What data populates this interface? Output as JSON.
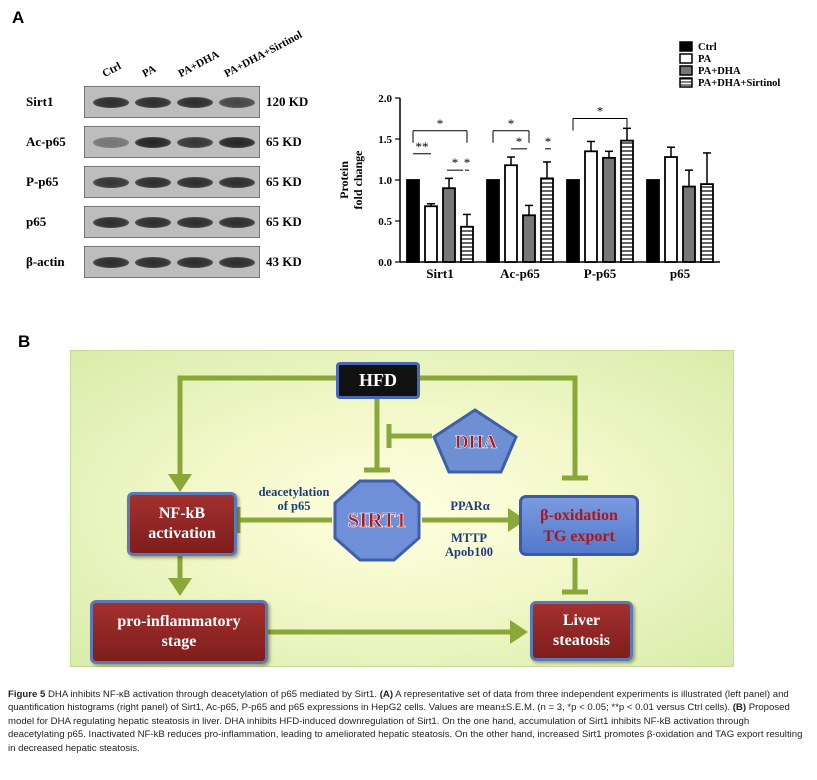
{
  "panel_a": {
    "letter": "A",
    "lanes": [
      "Ctrl",
      "PA",
      "PA+DHA",
      "PA+DHA+Sirtinol"
    ],
    "rows": [
      {
        "label": "Sirt1",
        "kd": "120 KD",
        "bands": [
          0.9,
          0.9,
          0.9,
          0.75
        ]
      },
      {
        "label": "Ac-p65",
        "kd": "65 KD",
        "bands": [
          0.45,
          0.95,
          0.85,
          0.95
        ]
      },
      {
        "label": "P-p65",
        "kd": "65 KD",
        "bands": [
          0.85,
          0.9,
          0.9,
          0.9
        ]
      },
      {
        "label": "p65",
        "kd": "65 KD",
        "bands": [
          0.9,
          0.9,
          0.9,
          0.9
        ]
      },
      {
        "label": "β-actin",
        "kd": "43 KD",
        "bands": [
          0.9,
          0.9,
          0.9,
          0.9
        ]
      }
    ]
  },
  "chart_data": {
    "type": "bar",
    "categories": [
      "Sirt1",
      "Ac-p65",
      "P-p65",
      "p65"
    ],
    "ylabel": "Protein fold change",
    "ylim": [
      0,
      2.0
    ],
    "yticks": [
      "0.0",
      "0.5",
      "1.0",
      "1.5",
      "2.0"
    ],
    "legend_position": "top-right",
    "series": [
      {
        "name": "Ctrl",
        "pattern": "solid-black",
        "values": [
          1.0,
          1.0,
          1.0,
          1.0
        ],
        "errors": [
          0,
          0,
          0,
          0
        ]
      },
      {
        "name": "PA",
        "pattern": "white",
        "values": [
          0.68,
          1.18,
          1.35,
          1.28
        ],
        "errors": [
          0.03,
          0.1,
          0.12,
          0.12
        ]
      },
      {
        "name": "PA+DHA",
        "pattern": "gray",
        "values": [
          0.9,
          0.57,
          1.27,
          0.92
        ],
        "errors": [
          0.12,
          0.12,
          0.08,
          0.2
        ]
      },
      {
        "name": "PA+DHA+Sirtinol",
        "pattern": "striped",
        "values": [
          0.43,
          1.02,
          1.48,
          0.95
        ],
        "errors": [
          0.15,
          0.2,
          0.15,
          0.38
        ]
      }
    ],
    "significance": [
      "*",
      "**",
      "*",
      "*",
      "*",
      "*",
      "*",
      "*"
    ]
  },
  "panel_b": {
    "letter": "B",
    "nodes": {
      "hfd": "HFD",
      "dha": "DHA",
      "sirt1": "SIRT1",
      "nfkb": [
        "NF-kB",
        "activation"
      ],
      "beta_ox": [
        "β-oxidation",
        "TG export"
      ],
      "inflam": [
        "pro-inflammatory",
        "stage"
      ],
      "steatosis": [
        "Liver",
        "steatosis"
      ]
    },
    "labels": {
      "deacetylation": [
        "deacetylation",
        "of p65"
      ],
      "ppar": "PPARα",
      "mttp": [
        "MTTP",
        "Apob100"
      ]
    }
  },
  "caption": {
    "figure": "Figure 5",
    "title": "DHA inhibits NF-κB activation through deacetylation of p65 mediated by Sirt1.",
    "a_label": "(A)",
    "a_text": "A representative set of data from three independent experiments is illustrated (left panel) and quantification histograms (right panel) of Sirt1, Ac-p65, P-p65 and p65 expressions in HepG2 cells. Values are mean±S.E.M. (n = 3, *p < 0.05; **p < 0.01 versus Ctrl cells).",
    "b_label": "(B)",
    "b_text": "Proposed model for DHA regulating hepatic steatosis in liver. DHA inhibits HFD-induced downregulation of Sirt1. On the one hand, accumulation of Sirt1 inhibits NF-kB activation through deacetylating p65. Inactivated NF-kB reduces pro-inflammation, leading to ameliorated hepatic steatosis. On the other hand, increased Sirt1 promotes β-oxidation and TAG export resulting in decreased hepatic steatosis."
  }
}
